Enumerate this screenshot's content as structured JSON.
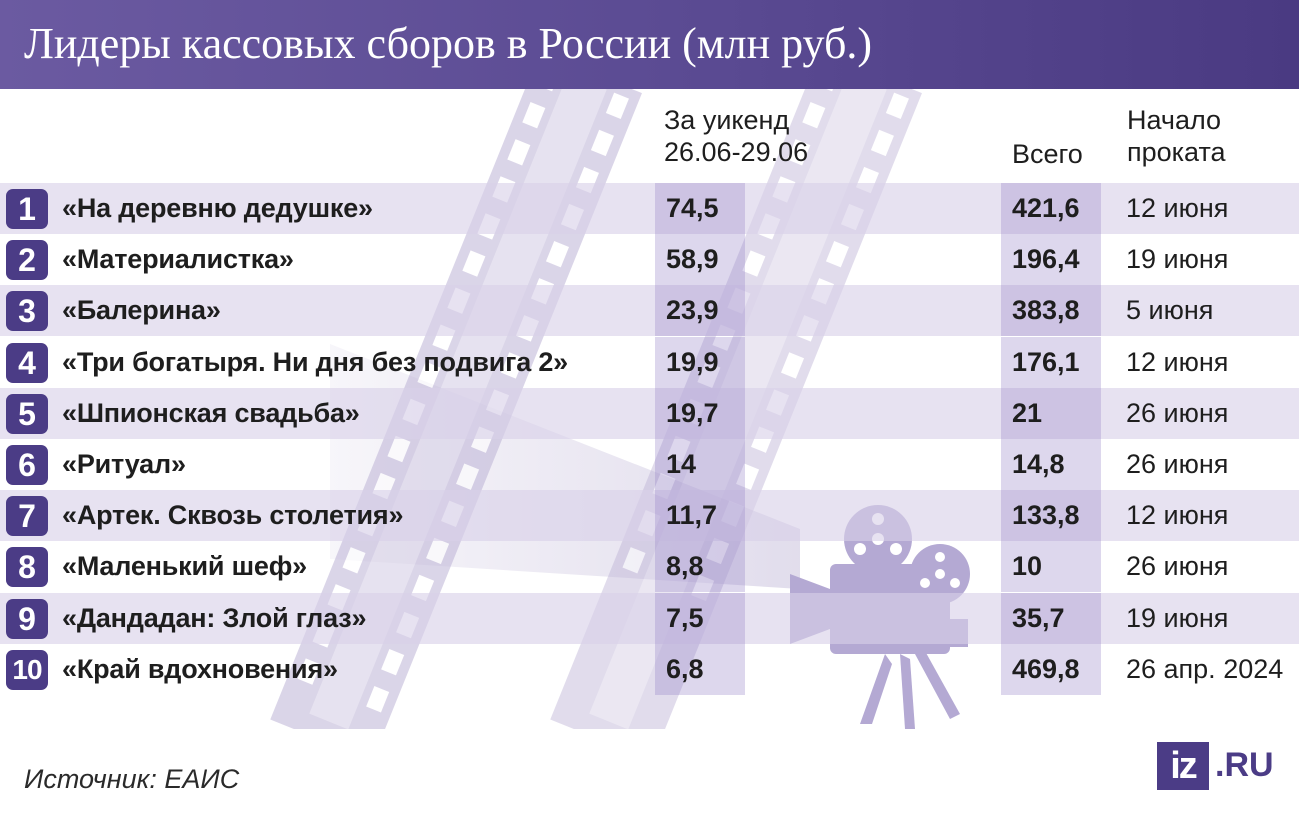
{
  "title": "Лидеры кассовых сборов в России (млн руб.)",
  "columns": {
    "weekend_line1": "За уикенд",
    "weekend_line2": "26.06-29.06",
    "total": "Всего",
    "start_line1": "Начало",
    "start_line2": "проката"
  },
  "chart_data": {
    "type": "table",
    "title": "Лидеры кассовых сборов в России (млн руб.)",
    "columns": [
      "",
      "За уикенд 26.06-29.06",
      "Всего",
      "Начало проката"
    ],
    "rows": [
      {
        "rank": "1",
        "film": "«На деревню дедушке»",
        "weekend": "74,5",
        "total": "421,6",
        "start": "12 июня"
      },
      {
        "rank": "2",
        "film": "«Материалистка»",
        "weekend": "58,9",
        "total": "196,4",
        "start": "19 июня"
      },
      {
        "rank": "3",
        "film": "«Балерина»",
        "weekend": "23,9",
        "total": "383,8",
        "start": "5 июня"
      },
      {
        "rank": "4",
        "film": "«Три богатыря. Ни дня без подвига 2»",
        "weekend": "19,9",
        "total": "176,1",
        "start": "12 июня"
      },
      {
        "rank": "5",
        "film": "«Шпионская свадьба»",
        "weekend": "19,7",
        "total": "21",
        "start": "26 июня"
      },
      {
        "rank": "6",
        "film": "«Ритуал»",
        "weekend": "14",
        "total": "14,8",
        "start": "26 июня"
      },
      {
        "rank": "7",
        "film": "«Артек. Сквозь столетия»",
        "weekend": "11,7",
        "total": "133,8",
        "start": "12 июня"
      },
      {
        "rank": "8",
        "film": "«Маленький шеф»",
        "weekend": "8,8",
        "total": "10",
        "start": "26 июня"
      },
      {
        "rank": "9",
        "film": "«Дандадан: Злой глаз»",
        "weekend": "7,5",
        "total": "35,7",
        "start": "19 июня"
      },
      {
        "rank": "10",
        "film": "«Край вдохновения»",
        "weekend": "6,8",
        "total": "469,8",
        "start": "26 апр. 2024"
      }
    ]
  },
  "footer": {
    "source": "Источник: ЕАИС",
    "logo_mark": "iz",
    "logo_text": ".RU"
  },
  "colors": {
    "accent": "#4b3c86",
    "header": "#5a4a92",
    "row_tint": "#d8d0e8"
  },
  "icons": [
    "film-strip-icon",
    "movie-camera-icon"
  ]
}
